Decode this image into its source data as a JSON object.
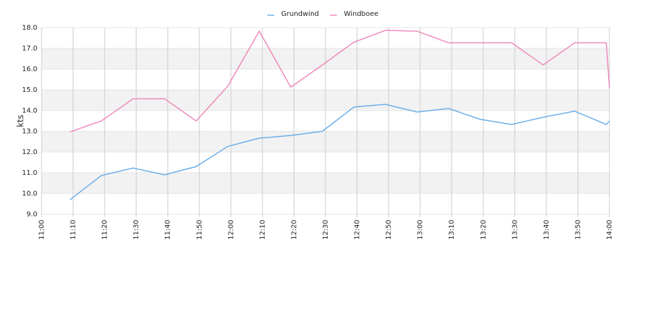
{
  "chart_data": {
    "type": "line",
    "y_label": "kts",
    "x": [
      "11:09",
      "11:19",
      "11:29",
      "11:39",
      "11:49",
      "11:59",
      "12:09",
      "12:19",
      "12:29",
      "12:39",
      "12:49",
      "12:59",
      "13:09",
      "13:19",
      "13:29",
      "13:39",
      "13:49",
      "13:59",
      "14:00"
    ],
    "series": [
      {
        "name": "Grundwind",
        "color": "#6aaeea",
        "values": [
          9.7,
          10.87,
          11.23,
          10.9,
          11.3,
          12.27,
          12.67,
          12.8,
          13.0,
          14.17,
          14.3,
          13.93,
          14.1,
          13.58,
          13.33,
          13.68,
          13.97,
          13.33,
          13.5
        ]
      },
      {
        "name": "Windboee",
        "color": "#ee88bb",
        "values": [
          12.97,
          13.5,
          14.57,
          14.57,
          13.5,
          15.17,
          17.83,
          15.13,
          16.2,
          17.3,
          17.87,
          17.83,
          17.27,
          17.27,
          17.27,
          16.2,
          17.27,
          17.27,
          15.1
        ]
      }
    ],
    "xlim": [
      "11:00",
      "14:00"
    ],
    "xticks": [
      "11:00",
      "11:10",
      "11:20",
      "11:30",
      "11:40",
      "11:50",
      "12:00",
      "12:10",
      "12:20",
      "12:30",
      "12:40",
      "12:50",
      "13:00",
      "13:10",
      "13:20",
      "13:30",
      "13:40",
      "13:50",
      "14:00"
    ],
    "ylim": [
      9,
      18
    ],
    "yticks": [
      {
        "value": 9,
        "label": "9.0"
      },
      {
        "value": 10,
        "label": "10.0"
      },
      {
        "value": 11,
        "label": "11.0"
      },
      {
        "value": 12,
        "label": "12.0"
      },
      {
        "value": 13,
        "label": "13.0"
      },
      {
        "value": 14,
        "label": "14.0"
      },
      {
        "value": 15,
        "label": "15.0"
      },
      {
        "value": 16,
        "label": "16.0"
      },
      {
        "value": 17,
        "label": "17.0"
      },
      {
        "value": 18,
        "label": "18.0"
      }
    ],
    "grid": true,
    "legend": "top"
  }
}
